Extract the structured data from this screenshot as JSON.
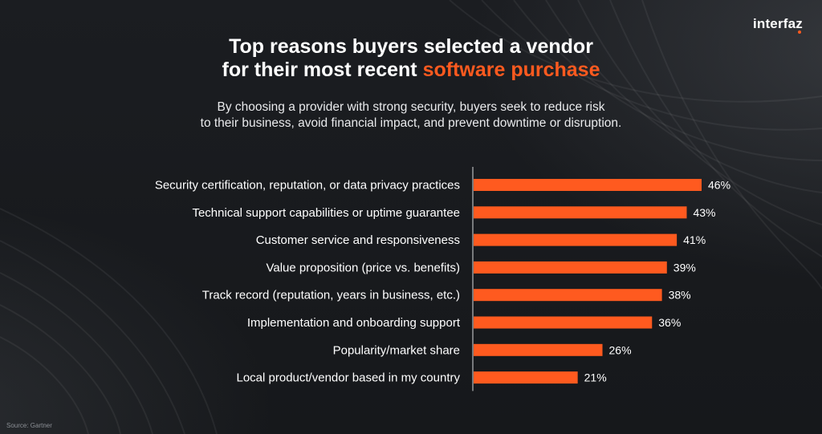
{
  "header": {
    "title_line1": "Top reasons buyers selected a vendor",
    "title_line2_plain": "for their most recent ",
    "title_line2_accent": "software purchase",
    "subtitle_line1": "By choosing a provider with strong security, buyers seek to reduce risk",
    "subtitle_line2": "to their business, avoid financial impact, and prevent downtime or disruption.",
    "logo": "interfaz"
  },
  "footer": {
    "source": "Source: Gartner"
  },
  "colors": {
    "accent": "#ff5a1f",
    "bar": "#ff5a1f",
    "background": "#17191c",
    "text": "#ffffff"
  },
  "chart_data": {
    "type": "bar",
    "orientation": "horizontal",
    "categories": [
      "Security certification, reputation, or data privacy practices",
      "Technical support capabilities or uptime guarantee",
      "Customer service and responsiveness",
      "Value proposition (price vs. benefits)",
      "Track record (reputation, years in business, etc.)",
      "Implementation and onboarding support",
      "Popularity/market share",
      "Local product/vendor based in my country"
    ],
    "values": [
      46,
      43,
      41,
      39,
      38,
      36,
      26,
      21
    ],
    "value_labels": [
      "46%",
      "43%",
      "41%",
      "39%",
      "38%",
      "36%",
      "26%",
      "21%"
    ],
    "unit": "%",
    "xlim": [
      0,
      46
    ],
    "grid": false,
    "legend": "none"
  }
}
